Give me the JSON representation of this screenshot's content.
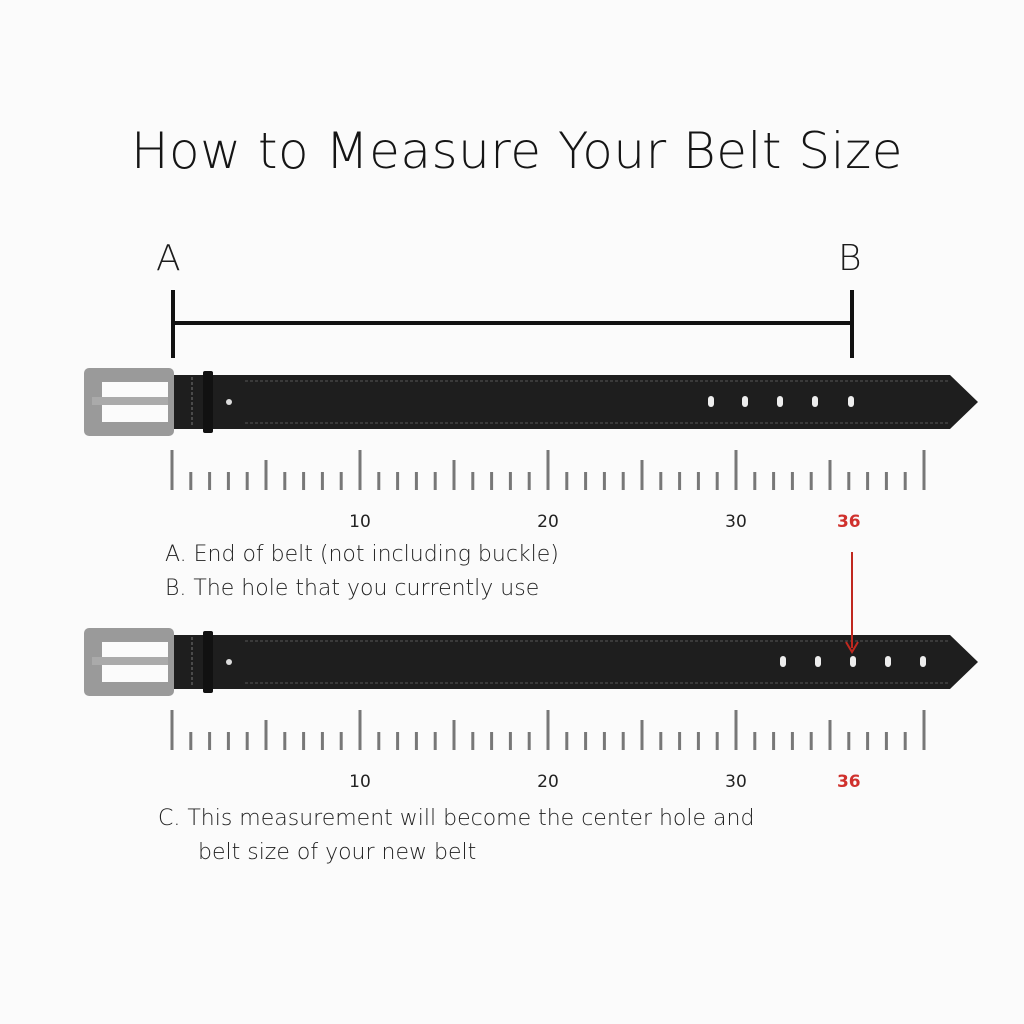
{
  "title": "How to Measure Your Belt Size",
  "markers": {
    "a": "A",
    "b": "B"
  },
  "ruler": {
    "min": 0,
    "max": 40,
    "labels": [
      "10",
      "20",
      "30",
      "36"
    ],
    "highlight": "36",
    "highlight_color": "#d0312d"
  },
  "belt1_caption": [
    "A. End of belt (not including buckle)",
    "B. The hole that you currently use"
  ],
  "belt2_caption": [
    "C. This measurement will  become the center hole and",
    "belt size of your new belt"
  ],
  "colors": {
    "belt": "#1e1e1e",
    "buckle": "#9a9a9a",
    "tick": "#777777",
    "arrow": "#c0281f"
  }
}
